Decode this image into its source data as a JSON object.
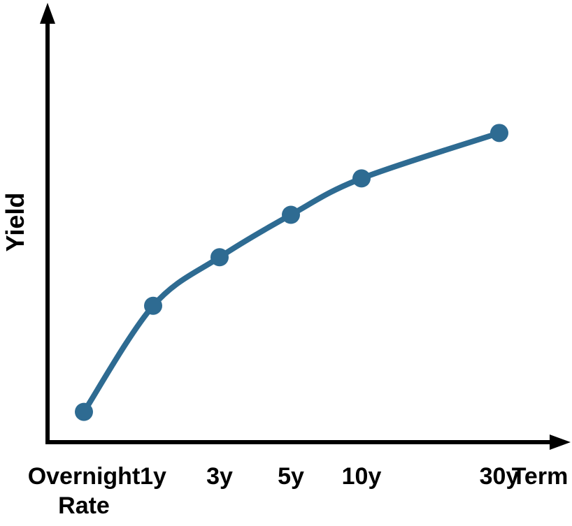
{
  "chart_data": {
    "type": "line",
    "title": "",
    "ylabel": "Yield",
    "xlabel": "Term",
    "categories": [
      "Overnight\nRate",
      "1y",
      "3y",
      "5y",
      "10y",
      "30y"
    ],
    "series": [
      {
        "values": [
          1.0,
          4.5,
          6.1,
          7.5,
          8.7,
          10.2
        ]
      }
    ],
    "ylim": [
      0,
      13
    ],
    "grid": false,
    "legend": "none",
    "colors": {
      "line": "#2e6b92",
      "axis": "#000000"
    }
  }
}
